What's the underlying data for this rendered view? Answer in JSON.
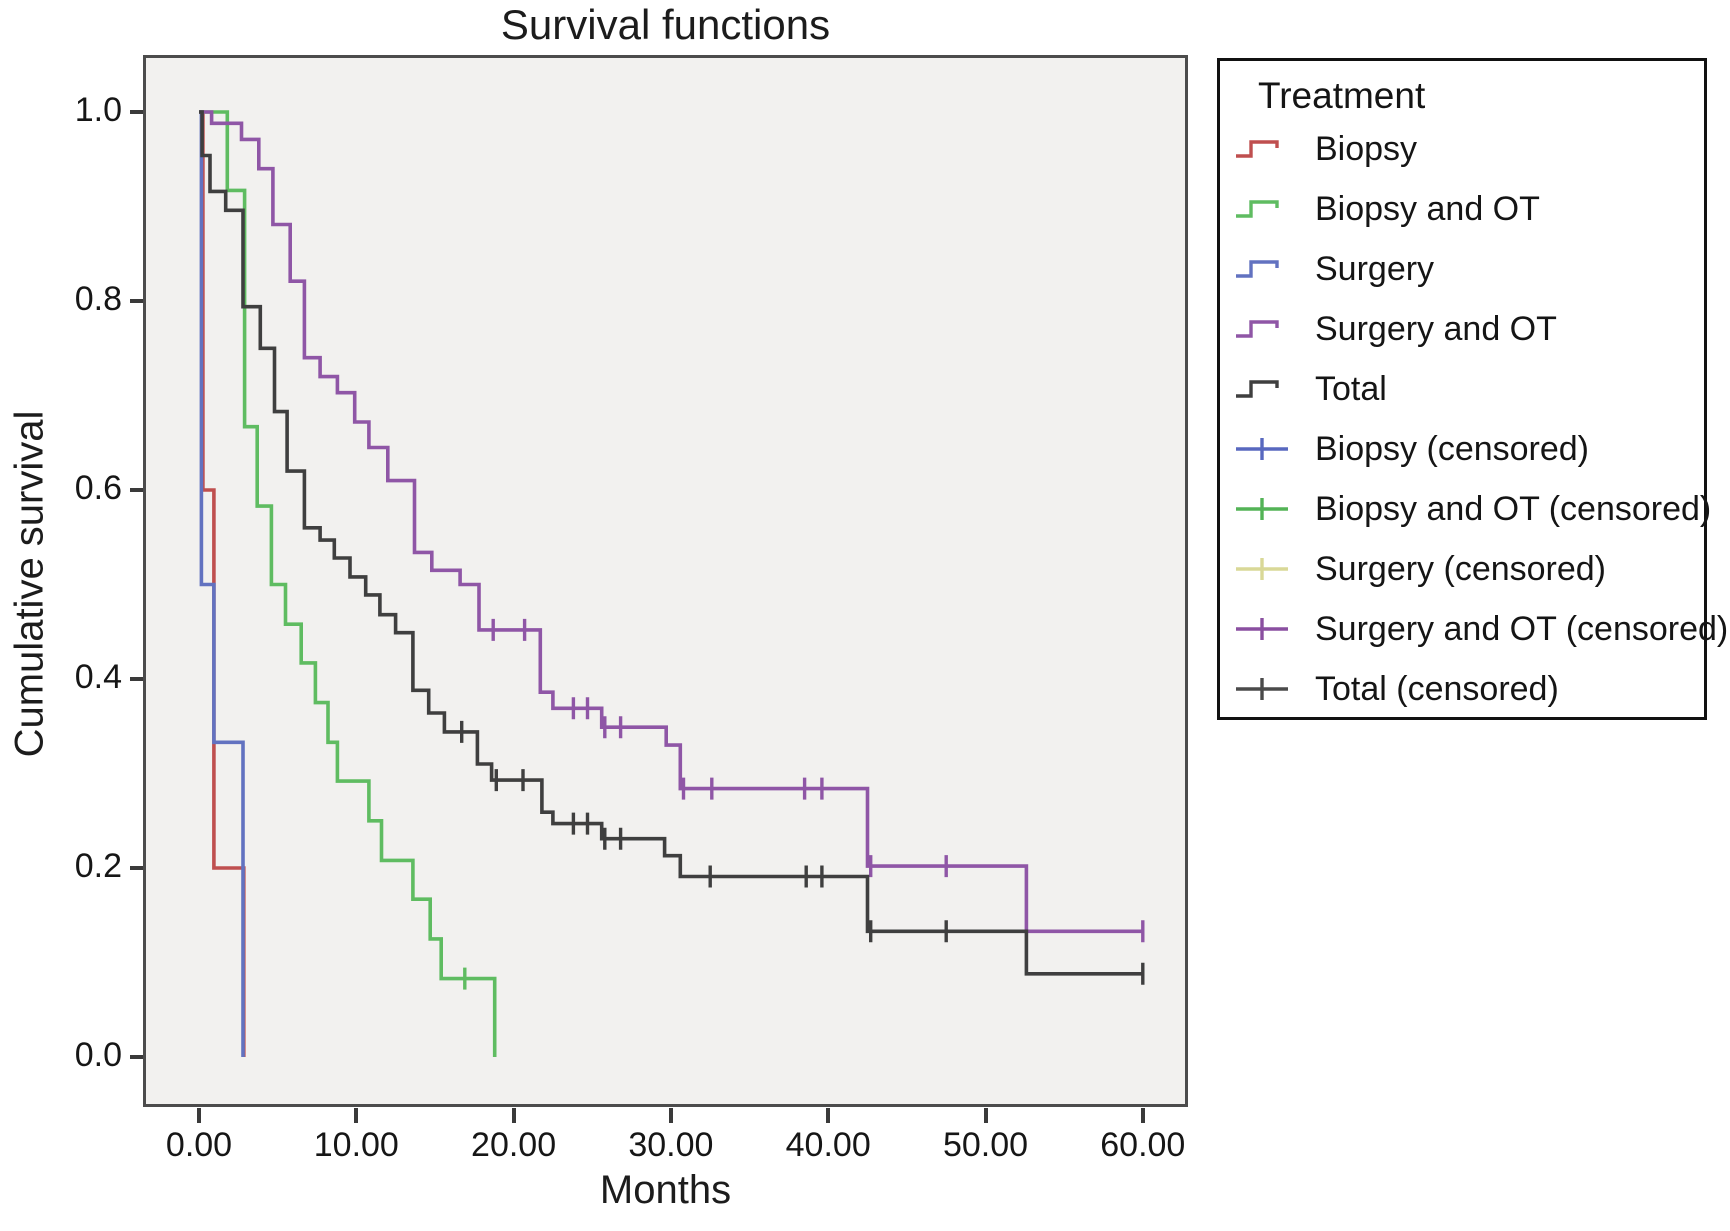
{
  "title": "Survival functions",
  "axes": {
    "x_label": "Months",
    "y_label": "Cumulative survival",
    "x_ticks": [
      {
        "label": "0.00",
        "m": 0
      },
      {
        "label": "10.00",
        "m": 10
      },
      {
        "label": "20.00",
        "m": 20
      },
      {
        "label": "30.00",
        "m": 30
      },
      {
        "label": "40.00",
        "m": 40
      },
      {
        "label": "50.00",
        "m": 50
      },
      {
        "label": "60.00",
        "m": 60
      }
    ],
    "y_ticks": [
      {
        "label": "0.0",
        "v": 0.0
      },
      {
        "label": "0.2",
        "v": 0.2
      },
      {
        "label": "0.4",
        "v": 0.4
      },
      {
        "label": "0.6",
        "v": 0.6
      },
      {
        "label": "0.8",
        "v": 0.8
      },
      {
        "label": "1.0",
        "v": 1.0
      }
    ]
  },
  "legend": {
    "title": "Treatment",
    "items": [
      {
        "label": "Biopsy",
        "type": "line",
        "color": "#bf4f4f"
      },
      {
        "label": "Biopsy and OT",
        "type": "line",
        "color": "#5fbc61"
      },
      {
        "label": "Surgery",
        "type": "line",
        "color": "#6272c0"
      },
      {
        "label": "Surgery and OT",
        "type": "line",
        "color": "#8f56a6"
      },
      {
        "label": "Total",
        "type": "line",
        "color": "#3f3f3f"
      },
      {
        "label": "Biopsy (censored)",
        "type": "plus",
        "color": "#5868bf"
      },
      {
        "label": "Biopsy and OT (censored)",
        "type": "plus",
        "color": "#53b356"
      },
      {
        "label": "Surgery (censored)",
        "type": "plus",
        "color": "#d9d897"
      },
      {
        "label": "Surgery and OT (censored)",
        "type": "plus",
        "color": "#8a4fa0"
      },
      {
        "label": "Total (censored)",
        "type": "plus",
        "color": "#4a4a4a"
      }
    ]
  },
  "chart_data": {
    "type": "line",
    "subtype": "kaplan-meier-step",
    "title": "Survival functions",
    "xlabel": "Months",
    "ylabel": "Cumulative survival",
    "xlim": [
      0,
      60
    ],
    "ylim": [
      0.0,
      1.0
    ],
    "grid": false,
    "legend_position": "outside-right",
    "plot_bg": "#f2f1ef",
    "series": [
      {
        "name": "Biopsy",
        "color": "#bf4f4f",
        "steps": [
          [
            0,
            1
          ],
          [
            0.25,
            0.6
          ],
          [
            0.95,
            0.2
          ],
          [
            2.85,
            0
          ]
        ],
        "censored": []
      },
      {
        "name": "Surgery",
        "color": "#6272c0",
        "steps": [
          [
            0,
            1
          ],
          [
            0.15,
            0.5
          ],
          [
            0.95,
            0.333
          ],
          [
            2.8,
            0
          ]
        ],
        "censored": []
      },
      {
        "name": "Biopsy and OT",
        "color": "#5fbc61",
        "steps": [
          [
            0,
            1
          ],
          [
            1.8,
            0.917
          ],
          [
            2.9,
            0.667
          ],
          [
            3.7,
            0.583
          ],
          [
            4.6,
            0.5
          ],
          [
            5.5,
            0.458
          ],
          [
            6.5,
            0.417
          ],
          [
            7.4,
            0.375
          ],
          [
            8.2,
            0.333
          ],
          [
            8.8,
            0.292
          ],
          [
            10.8,
            0.25
          ],
          [
            11.6,
            0.208
          ],
          [
            13.6,
            0.167
          ],
          [
            14.7,
            0.125
          ],
          [
            15.4,
            0.083
          ],
          [
            18.8,
            0
          ]
        ],
        "censored": [
          [
            16.9,
            0.083
          ]
        ]
      },
      {
        "name": "Surgery and OT",
        "color": "#8f56a6",
        "steps": [
          [
            0,
            1
          ],
          [
            0.8,
            0.988
          ],
          [
            2.7,
            0.971
          ],
          [
            3.8,
            0.94
          ],
          [
            4.7,
            0.881
          ],
          [
            5.8,
            0.821
          ],
          [
            6.7,
            0.74
          ],
          [
            7.7,
            0.72
          ],
          [
            8.8,
            0.703
          ],
          [
            9.9,
            0.672
          ],
          [
            10.8,
            0.645
          ],
          [
            12.0,
            0.61
          ],
          [
            13.7,
            0.534
          ],
          [
            14.8,
            0.515
          ],
          [
            16.6,
            0.5
          ],
          [
            17.8,
            0.452
          ],
          [
            21.7,
            0.386
          ],
          [
            22.5,
            0.369
          ],
          [
            25.6,
            0.349
          ],
          [
            29.7,
            0.33
          ],
          [
            30.6,
            0.284
          ],
          [
            42.5,
            0.202
          ],
          [
            52.6,
            0.133
          ],
          [
            60,
            0.133
          ]
        ],
        "censored": [
          [
            18.7,
            0.452
          ],
          [
            20.7,
            0.452
          ],
          [
            23.8,
            0.369
          ],
          [
            24.7,
            0.369
          ],
          [
            25.8,
            0.349
          ],
          [
            26.8,
            0.349
          ],
          [
            30.8,
            0.284
          ],
          [
            32.6,
            0.284
          ],
          [
            38.5,
            0.284
          ],
          [
            39.6,
            0.284
          ],
          [
            42.7,
            0.202
          ],
          [
            47.5,
            0.202
          ],
          [
            60,
            0.133
          ]
        ]
      },
      {
        "name": "Total",
        "color": "#3f3f3f",
        "steps": [
          [
            0,
            1
          ],
          [
            0.2,
            0.954
          ],
          [
            0.7,
            0.916
          ],
          [
            1.7,
            0.896
          ],
          [
            2.8,
            0.794
          ],
          [
            3.9,
            0.75
          ],
          [
            4.8,
            0.683
          ],
          [
            5.6,
            0.62
          ],
          [
            6.7,
            0.56
          ],
          [
            7.7,
            0.547
          ],
          [
            8.6,
            0.528
          ],
          [
            9.6,
            0.508
          ],
          [
            10.6,
            0.489
          ],
          [
            11.5,
            0.468
          ],
          [
            12.5,
            0.449
          ],
          [
            13.6,
            0.388
          ],
          [
            14.6,
            0.364
          ],
          [
            15.6,
            0.344
          ],
          [
            17.7,
            0.31
          ],
          [
            18.6,
            0.293
          ],
          [
            21.8,
            0.259
          ],
          [
            22.5,
            0.247
          ],
          [
            25.6,
            0.231
          ],
          [
            29.6,
            0.213
          ],
          [
            30.6,
            0.191
          ],
          [
            42.5,
            0.133
          ],
          [
            52.6,
            0.088
          ],
          [
            60,
            0.088
          ]
        ],
        "censored": [
          [
            16.7,
            0.344
          ],
          [
            18.9,
            0.293
          ],
          [
            20.6,
            0.293
          ],
          [
            23.8,
            0.247
          ],
          [
            24.7,
            0.247
          ],
          [
            25.8,
            0.231
          ],
          [
            26.8,
            0.231
          ],
          [
            32.5,
            0.191
          ],
          [
            38.6,
            0.191
          ],
          [
            39.6,
            0.191
          ],
          [
            42.7,
            0.133
          ],
          [
            47.5,
            0.133
          ],
          [
            60,
            0.088
          ]
        ]
      }
    ]
  }
}
